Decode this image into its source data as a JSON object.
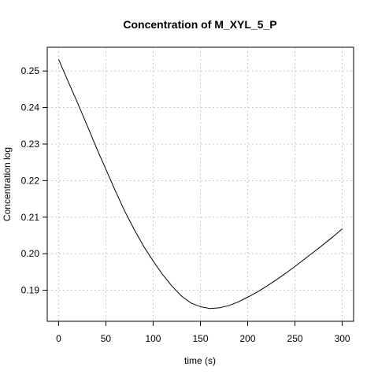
{
  "chart_data": {
    "type": "line",
    "title": "Concentration of M_XYL_5_P",
    "xlabel": "time (s)",
    "ylabel": "Concentration log",
    "xlim": [
      0,
      300
    ],
    "ylim": [
      0.1815,
      0.2565
    ],
    "xticks": [
      0,
      50,
      100,
      150,
      200,
      250,
      300
    ],
    "yticks": [
      0.19,
      0.2,
      0.21,
      0.22,
      0.23,
      0.24,
      0.25
    ],
    "grid": true,
    "series": [
      {
        "x": [
          0,
          10,
          20,
          30,
          40,
          50,
          60,
          70,
          80,
          90,
          100,
          110,
          120,
          130,
          140,
          150,
          160,
          170,
          180,
          190,
          200,
          210,
          220,
          230,
          240,
          250,
          260,
          270,
          280,
          290,
          300
        ],
        "values": [
          0.2532,
          0.2472,
          0.2413,
          0.2352,
          0.229,
          0.2231,
          0.2172,
          0.2116,
          0.2066,
          0.202,
          0.198,
          0.1943,
          0.1911,
          0.1884,
          0.1865,
          0.1855,
          0.185,
          0.1852,
          0.1858,
          0.1868,
          0.1881,
          0.1895,
          0.1911,
          0.1928,
          0.1946,
          0.1965,
          0.1985,
          0.2005,
          0.2025,
          0.2046,
          0.2068
        ]
      }
    ]
  }
}
